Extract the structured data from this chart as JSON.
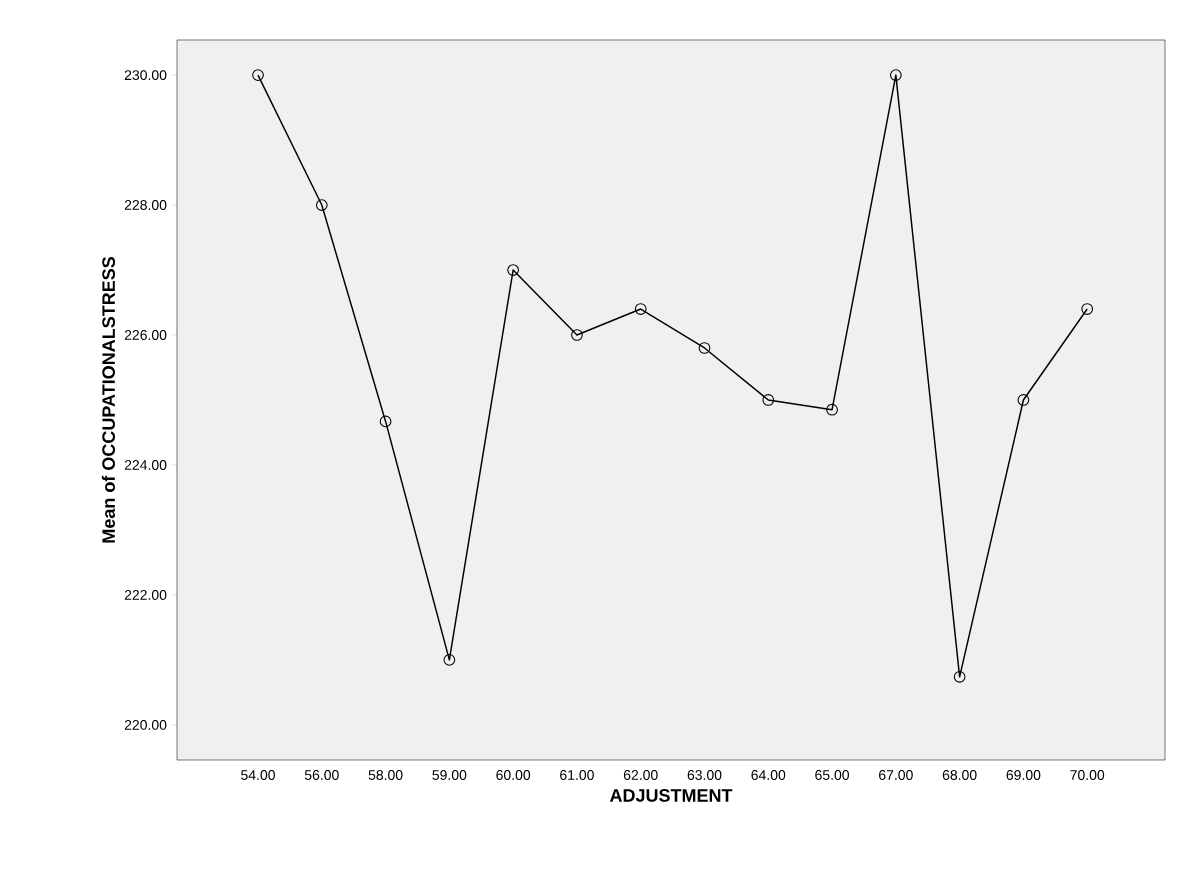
{
  "chart_data": {
    "type": "line",
    "xlabel": "ADJUSTMENT",
    "ylabel": "Mean of OCCUPATIONALSTRESS",
    "categories": [
      "54.00",
      "56.00",
      "58.00",
      "59.00",
      "60.00",
      "61.00",
      "62.00",
      "63.00",
      "64.00",
      "65.00",
      "67.00",
      "68.00",
      "69.00",
      "70.00"
    ],
    "values": [
      230,
      228,
      224.67,
      221,
      227,
      226,
      226.4,
      225.8,
      225,
      224.85,
      230,
      220.74,
      225,
      226.4
    ],
    "color": "#000000",
    "marker": "circle",
    "ylim": [
      219.46,
      230.54
    ],
    "yticks": [
      {
        "value": 220,
        "label": "220.00"
      },
      {
        "value": 222,
        "label": "222.00"
      },
      {
        "value": 224,
        "label": "224.00"
      },
      {
        "value": 226,
        "label": "226.00"
      },
      {
        "value": 228,
        "label": "228.00"
      },
      {
        "value": 230,
        "label": "230.00"
      }
    ]
  }
}
